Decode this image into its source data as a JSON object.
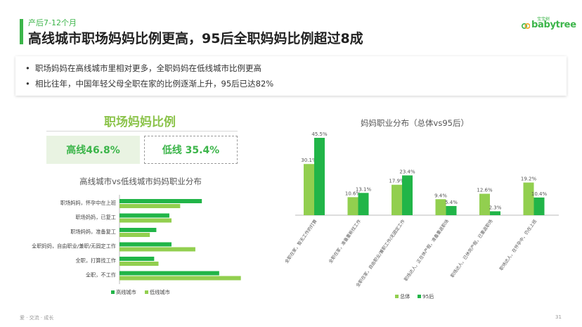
{
  "header": {
    "kicker": "产后7-12个月",
    "title": "高线城市职场妈妈比例更高，95后全职妈妈比例超过8成",
    "logo_text": "babytree",
    "logo_subtext": "宝宝树"
  },
  "bullets": [
    "职场妈妈在高线城市里相对更多，全职妈妈在低线城市比例更高",
    "相比往年，中国年轻父母全职在家的比例逐渐上升，95后已达82%"
  ],
  "ratio_section": {
    "title": "职场妈妈比例",
    "high_label": "高线46.8%",
    "low_label": "低线 35.4%"
  },
  "colors": {
    "dark_green": "#21b548",
    "light_green": "#92cf4f",
    "accent": "#3cb54a"
  },
  "chart_data": [
    {
      "type": "bar",
      "orientation": "horizontal",
      "title": "高线城市vs低线城市妈妈职业分布",
      "categories": [
        "职场妈妈，怀孕中在上班",
        "职场妈妈，已复工",
        "职场妈妈，准备复工",
        "全职妈妈，自由职业/兼职/无固定工作",
        "全职，打算找工作",
        "全职，不工作"
      ],
      "series": [
        {
          "name": "高线城市",
          "color": "#21b548",
          "values": [
            19,
            11.5,
            8.5,
            12,
            8,
            23
          ]
        },
        {
          "name": "低线城市",
          "color": "#92cf4f",
          "values": [
            14,
            12,
            7,
            17.5,
            9,
            28
          ]
        }
      ],
      "xlim": [
        0,
        30
      ],
      "legend_position": "bottom"
    },
    {
      "type": "bar",
      "orientation": "vertical",
      "title": "妈妈职业分布（总体vs95后）",
      "categories": [
        "全职在家，暂无工作的打算",
        "全职在家，准备重新找工作",
        "全职在家，自由职业/兼职工作/无固定工作",
        "职场达人，正在休产假，准备重返职场",
        "职场达人，已休完产假，已重返职场",
        "职场达人，在怀孕中，仍在上班"
      ],
      "series": [
        {
          "name": "总体",
          "color": "#92cf4f",
          "values": [
            30.1,
            10.6,
            17.9,
            9.4,
            12.6,
            19.2
          ],
          "labels": [
            "30.1%",
            "10.6%",
            "17.9%",
            "9.4%",
            "12.6%",
            "19.2%"
          ]
        },
        {
          "name": "95后",
          "color": "#21b548",
          "values": [
            45.5,
            13.1,
            23.4,
            5.4,
            2.3,
            10.4
          ],
          "labels": [
            "45.5%",
            "13.1%",
            "23.4%",
            "5.4%",
            "2.3%",
            "10.4%"
          ]
        }
      ],
      "ylim": [
        0,
        50
      ],
      "legend_position": "bottom"
    }
  ],
  "footer": {
    "left": "爱 · 交流 · 成长",
    "page": "31"
  }
}
